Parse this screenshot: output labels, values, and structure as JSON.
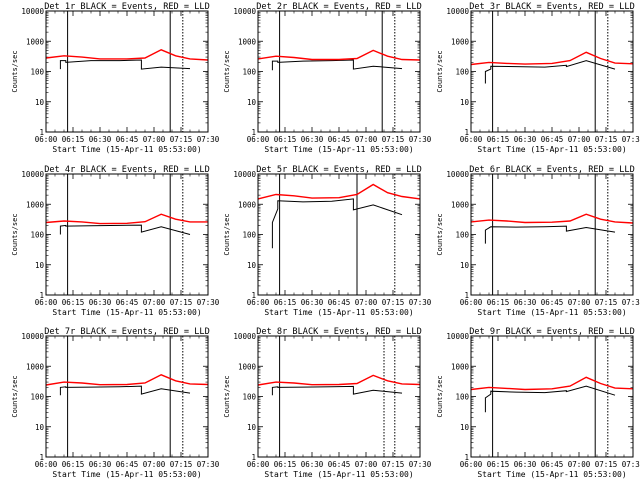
{
  "chart_data": [
    {
      "type": "line",
      "title": "Det 1r BLACK = Events, RED = LLD",
      "xlabel": "Start Time (15-Apr-11 05:53:00)",
      "ylabel": "Counts/sec",
      "yscale": "log",
      "ylim": [
        1,
        10000
      ],
      "x_ticks": [
        "06:00",
        "06:15",
        "06:30",
        "06:45",
        "07:00",
        "07:15",
        "07:30"
      ],
      "y_ticks": [
        "1",
        "10",
        "100",
        "1000",
        "10000"
      ],
      "solid_markers": [
        "06:12",
        "07:09"
      ],
      "dotted_markers": [
        "07:16"
      ],
      "series": [
        {
          "name": "Events",
          "color": "#000000",
          "x": [
            "06:08",
            "06:08",
            "06:11",
            "06:11",
            "06:25",
            "06:41",
            "06:53",
            "06:53",
            "07:04",
            "07:20"
          ],
          "y": [
            120,
            230,
            230,
            200,
            230,
            230,
            240,
            120,
            140,
            125
          ]
        },
        {
          "name": "LLD",
          "color": "#ff0000",
          "x": [
            "06:00",
            "06:10",
            "06:20",
            "06:30",
            "06:45",
            "06:55",
            "07:04",
            "07:12",
            "07:20",
            "07:30"
          ],
          "y": [
            280,
            330,
            300,
            260,
            260,
            280,
            520,
            330,
            260,
            240
          ]
        }
      ]
    },
    {
      "type": "line",
      "title": "Det 2r BLACK = Events, RED = LLD",
      "xlabel": "Start Time (15-Apr-11 05:53:00)",
      "ylabel": "Counts/sec",
      "yscale": "log",
      "ylim": [
        1,
        10000
      ],
      "x_ticks": [
        "06:00",
        "06:15",
        "06:30",
        "06:45",
        "07:00",
        "07:15",
        "07:30"
      ],
      "y_ticks": [
        "1",
        "10",
        "100",
        "1000",
        "10000"
      ],
      "solid_markers": [
        "06:12",
        "07:09"
      ],
      "dotted_markers": [
        "07:16"
      ],
      "series": [
        {
          "name": "Events",
          "color": "#000000",
          "x": [
            "06:08",
            "06:08",
            "06:11",
            "06:11",
            "06:25",
            "06:41",
            "06:53",
            "06:53",
            "07:04",
            "07:20"
          ],
          "y": [
            110,
            220,
            220,
            200,
            220,
            230,
            240,
            120,
            150,
            125
          ]
        },
        {
          "name": "LLD",
          "color": "#ff0000",
          "x": [
            "06:00",
            "06:10",
            "06:20",
            "06:30",
            "06:45",
            "06:55",
            "07:04",
            "07:12",
            "07:20",
            "07:30"
          ],
          "y": [
            260,
            320,
            290,
            250,
            250,
            270,
            500,
            320,
            250,
            240
          ]
        }
      ]
    },
    {
      "type": "line",
      "title": "Det 3r BLACK = Events, RED = LLD",
      "xlabel": "Start Time (15-Apr-11 05:53:00)",
      "ylabel": "Counts/sec",
      "yscale": "log",
      "ylim": [
        1,
        10000
      ],
      "x_ticks": [
        "06:00",
        "06:15",
        "06:30",
        "06:45",
        "07:00",
        "07:15",
        "07:30"
      ],
      "y_ticks": [
        "1",
        "10",
        "100",
        "1000",
        "10000"
      ],
      "solid_markers": [
        "06:12",
        "07:09"
      ],
      "dotted_markers": [
        "07:16"
      ],
      "series": [
        {
          "name": "Events",
          "color": "#000000",
          "x": [
            "06:08",
            "06:08",
            "06:11",
            "06:11",
            "06:25",
            "06:41",
            "06:53",
            "06:53",
            "07:04",
            "07:20"
          ],
          "y": [
            40,
            100,
            120,
            150,
            145,
            140,
            160,
            145,
            230,
            120
          ]
        },
        {
          "name": "LLD",
          "color": "#ff0000",
          "x": [
            "06:00",
            "06:10",
            "06:20",
            "06:30",
            "06:45",
            "06:55",
            "07:04",
            "07:12",
            "07:20",
            "07:30"
          ],
          "y": [
            170,
            200,
            185,
            175,
            185,
            230,
            430,
            270,
            190,
            180
          ]
        }
      ]
    },
    {
      "type": "line",
      "title": "Det 4r BLACK = Events, RED = LLD",
      "xlabel": "Start Time (15-Apr-11 05:53:00)",
      "ylabel": "Counts/sec",
      "yscale": "log",
      "ylim": [
        1,
        10000
      ],
      "x_ticks": [
        "06:00",
        "06:15",
        "06:30",
        "06:45",
        "07:00",
        "07:15",
        "07:30"
      ],
      "y_ticks": [
        "1",
        "10",
        "100",
        "1000",
        "10000"
      ],
      "solid_markers": [
        "06:12",
        "07:09"
      ],
      "dotted_markers": [
        "07:16"
      ],
      "series": [
        {
          "name": "Events",
          "color": "#000000",
          "x": [
            "06:08",
            "06:08",
            "06:11",
            "06:11",
            "06:25",
            "06:41",
            "06:53",
            "06:53",
            "07:04",
            "07:20"
          ],
          "y": [
            100,
            190,
            200,
            190,
            195,
            200,
            205,
            120,
            180,
            100
          ]
        },
        {
          "name": "LLD",
          "color": "#ff0000",
          "x": [
            "06:00",
            "06:10",
            "06:20",
            "06:30",
            "06:45",
            "06:55",
            "07:04",
            "07:12",
            "07:20",
            "07:30"
          ],
          "y": [
            250,
            280,
            260,
            230,
            235,
            265,
            470,
            320,
            260,
            260
          ]
        }
      ]
    },
    {
      "type": "line",
      "title": "Det 5r BLACK = Events, RED = LLD",
      "xlabel": "Start Time (15-Apr-11 05:53:00)",
      "ylabel": "Counts/sec",
      "yscale": "log",
      "ylim": [
        1,
        10000
      ],
      "x_ticks": [
        "06:00",
        "06:15",
        "06:30",
        "06:45",
        "07:00",
        "07:15",
        "07:30"
      ],
      "y_ticks": [
        "1",
        "10",
        "100",
        "1000",
        "10000"
      ],
      "solid_markers": [
        "06:12",
        "06:55"
      ],
      "dotted_markers": [
        "07:16"
      ],
      "series": [
        {
          "name": "Events",
          "color": "#000000",
          "x": [
            "06:08",
            "06:08",
            "06:11",
            "06:11",
            "06:25",
            "06:41",
            "06:53",
            "06:53",
            "07:04",
            "07:20"
          ],
          "y": [
            35,
            250,
            700,
            1300,
            1200,
            1250,
            1500,
            650,
            950,
            450
          ]
        },
        {
          "name": "LLD",
          "color": "#ff0000",
          "x": [
            "06:00",
            "06:10",
            "06:20",
            "06:30",
            "06:45",
            "06:55",
            "07:04",
            "07:12",
            "07:20",
            "07:30"
          ],
          "y": [
            1500,
            2100,
            1900,
            1600,
            1650,
            2100,
            4500,
            2400,
            1800,
            1500
          ]
        }
      ]
    },
    {
      "type": "line",
      "title": "Det 6r BLACK = Events, RED = LLD",
      "xlabel": "Start Time (15-Apr-11 05:53:00)",
      "ylabel": "Counts/sec",
      "yscale": "log",
      "ylim": [
        1,
        10000
      ],
      "x_ticks": [
        "06:00",
        "06:15",
        "06:30",
        "06:45",
        "07:00",
        "07:15",
        "07:30"
      ],
      "y_ticks": [
        "1",
        "10",
        "100",
        "1000",
        "10000"
      ],
      "solid_markers": [
        "06:12",
        "07:09"
      ],
      "dotted_markers": [
        "07:16"
      ],
      "series": [
        {
          "name": "Events",
          "color": "#000000",
          "x": [
            "06:08",
            "06:08",
            "06:11",
            "06:11",
            "06:25",
            "06:41",
            "06:53",
            "06:53",
            "07:04",
            "07:20"
          ],
          "y": [
            50,
            140,
            180,
            180,
            175,
            180,
            190,
            130,
            170,
            120
          ]
        },
        {
          "name": "LLD",
          "color": "#ff0000",
          "x": [
            "06:00",
            "06:10",
            "06:20",
            "06:30",
            "06:45",
            "06:55",
            "07:04",
            "07:12",
            "07:20",
            "07:30"
          ],
          "y": [
            260,
            300,
            280,
            250,
            255,
            280,
            470,
            320,
            260,
            240
          ]
        }
      ]
    },
    {
      "type": "line",
      "title": "Det 7r BLACK = Events, RED = LLD",
      "xlabel": "Start Time (15-Apr-11 05:53:00)",
      "ylabel": "Counts/sec",
      "yscale": "log",
      "ylim": [
        1,
        10000
      ],
      "x_ticks": [
        "06:00",
        "06:15",
        "06:30",
        "06:45",
        "07:00",
        "07:15",
        "07:30"
      ],
      "y_ticks": [
        "1",
        "10",
        "100",
        "1000",
        "10000"
      ],
      "solid_markers": [
        "06:12",
        "07:09"
      ],
      "dotted_markers": [
        "07:16"
      ],
      "series": [
        {
          "name": "Events",
          "color": "#000000",
          "x": [
            "06:08",
            "06:08",
            "06:11",
            "06:11",
            "06:25",
            "06:41",
            "06:53",
            "06:53",
            "07:04",
            "07:20"
          ],
          "y": [
            110,
            200,
            210,
            200,
            205,
            210,
            220,
            120,
            180,
            130
          ]
        },
        {
          "name": "LLD",
          "color": "#ff0000",
          "x": [
            "06:00",
            "06:10",
            "06:20",
            "06:30",
            "06:45",
            "06:55",
            "07:04",
            "07:12",
            "07:20",
            "07:30"
          ],
          "y": [
            240,
            300,
            280,
            245,
            250,
            280,
            520,
            330,
            260,
            250
          ]
        }
      ]
    },
    {
      "type": "line",
      "title": "Det 8r BLACK = Events, RED = LLD",
      "xlabel": "Start Time (15-Apr-11 05:53:00)",
      "ylabel": "Counts/sec",
      "yscale": "log",
      "ylim": [
        1,
        10000
      ],
      "x_ticks": [
        "06:00",
        "06:15",
        "06:30",
        "06:45",
        "07:00",
        "07:15",
        "07:30"
      ],
      "y_ticks": [
        "1",
        "10",
        "100",
        "1000",
        "10000"
      ],
      "solid_markers": [
        "06:12"
      ],
      "dotted_markers": [
        "07:10",
        "07:16"
      ],
      "series": [
        {
          "name": "Events",
          "color": "#000000",
          "x": [
            "06:08",
            "06:08",
            "06:11",
            "06:11",
            "06:25",
            "06:41",
            "06:53",
            "06:53",
            "07:04",
            "07:20"
          ],
          "y": [
            110,
            200,
            210,
            200,
            205,
            210,
            215,
            120,
            160,
            130
          ]
        },
        {
          "name": "LLD",
          "color": "#ff0000",
          "x": [
            "06:00",
            "06:10",
            "06:20",
            "06:30",
            "06:45",
            "06:55",
            "07:04",
            "07:12",
            "07:20",
            "07:30"
          ],
          "y": [
            240,
            300,
            280,
            245,
            250,
            270,
            500,
            330,
            260,
            250
          ]
        }
      ]
    },
    {
      "type": "line",
      "title": "Det 9r BLACK = Events, RED = LLD",
      "xlabel": "Start Time (15-Apr-11 05:53:00)",
      "ylabel": "Counts/sec",
      "yscale": "log",
      "ylim": [
        1,
        10000
      ],
      "x_ticks": [
        "06:00",
        "06:15",
        "06:30",
        "06:45",
        "07:00",
        "07:15",
        "07:30"
      ],
      "y_ticks": [
        "1",
        "10",
        "100",
        "1000",
        "10000"
      ],
      "solid_markers": [
        "06:12",
        "07:09"
      ],
      "dotted_markers": [
        "07:16"
      ],
      "series": [
        {
          "name": "Events",
          "color": "#000000",
          "x": [
            "06:08",
            "06:08",
            "06:11",
            "06:11",
            "06:25",
            "06:41",
            "06:53",
            "06:53",
            "07:04",
            "07:20"
          ],
          "y": [
            30,
            90,
            120,
            150,
            140,
            135,
            155,
            145,
            220,
            110
          ]
        },
        {
          "name": "LLD",
          "color": "#ff0000",
          "x": [
            "06:00",
            "06:10",
            "06:20",
            "06:30",
            "06:45",
            "06:55",
            "07:04",
            "07:12",
            "07:20",
            "07:30"
          ],
          "y": [
            170,
            200,
            185,
            170,
            180,
            220,
            430,
            270,
            190,
            180
          ]
        }
      ]
    }
  ]
}
